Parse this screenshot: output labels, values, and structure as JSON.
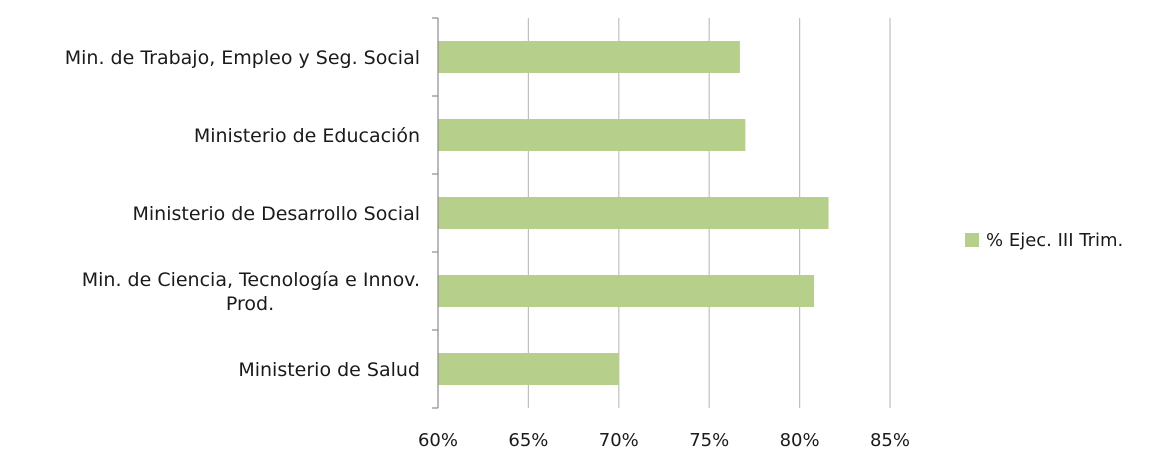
{
  "chart_data": {
    "type": "bar",
    "orientation": "horizontal",
    "title": "",
    "xlabel": "",
    "ylabel": "",
    "categories": [
      "Min. de Trabajo, Empleo y Seg. Social",
      "Ministerio de Educación",
      "Ministerio de Desarrollo Social",
      "Min. de Ciencia, Tecnología e Innov. Prod.",
      "Ministerio de Salud"
    ],
    "series": [
      {
        "name": "% Ejec. III Trim.",
        "values": [
          76.7,
          77.0,
          81.6,
          80.8,
          70.0
        ],
        "color": "#b6d08c"
      }
    ],
    "xlim": [
      60,
      85
    ],
    "xticks": [
      "60%",
      "65%",
      "70%",
      "75%",
      "80%",
      "85%"
    ],
    "grid": true,
    "legend_position": "right"
  }
}
